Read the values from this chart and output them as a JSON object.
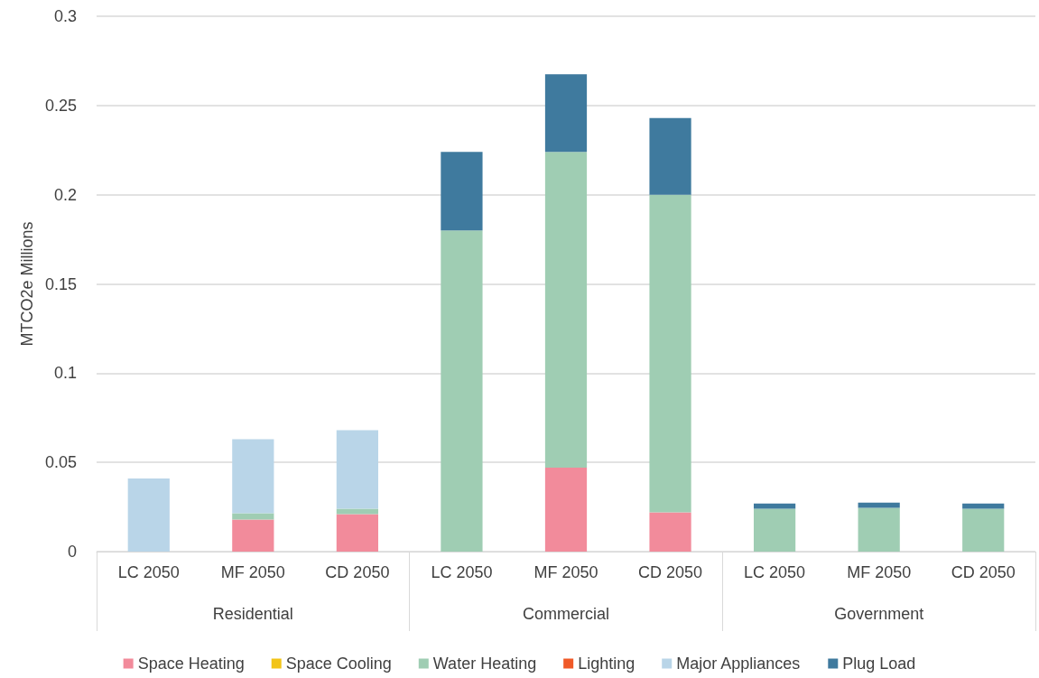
{
  "chart_data": {
    "type": "bar",
    "stacked": true,
    "ylabel": "MTCO2e Millions",
    "categories": [
      "LC 2050",
      "MF 2050",
      "CD 2050",
      "LC 2050",
      "MF 2050",
      "CD 2050",
      "LC 2050",
      "MF 2050",
      "CD 2050"
    ],
    "annotations": [
      "Residential",
      "Commercial",
      "Government"
    ],
    "series": [
      {
        "name": "Space Heating",
        "color": "#f28b9b",
        "values": [
          0,
          0.018,
          0.021,
          0,
          0.047,
          0.022,
          0,
          0,
          0
        ]
      },
      {
        "name": "Space Cooling",
        "color": "#f2c417",
        "values": [
          0,
          0,
          0,
          0,
          0,
          0,
          0,
          0,
          0
        ]
      },
      {
        "name": "Water Heating",
        "color": "#9fcdb3",
        "values": [
          0,
          0.0035,
          0.003,
          0.18,
          0.177,
          0.178,
          0.024,
          0.0245,
          0.024
        ]
      },
      {
        "name": "Lighting",
        "color": "#f05a28",
        "values": [
          0,
          0,
          0,
          0,
          0,
          0,
          0,
          0,
          0
        ]
      },
      {
        "name": "Major Appliances",
        "color": "#b9d5e8",
        "values": [
          0.041,
          0.0415,
          0.044,
          0,
          0,
          0,
          0,
          0,
          0
        ]
      },
      {
        "name": "Plug Load",
        "color": "#3f7a9e",
        "values": [
          0,
          0,
          0,
          0.044,
          0.0435,
          0.043,
          0.003,
          0.003,
          0.003
        ]
      }
    ],
    "ylim": [
      0,
      0.3
    ],
    "yticks": [
      0,
      0.05,
      0.1,
      0.15,
      0.2,
      0.25,
      0.3
    ],
    "grid": "y",
    "legend": "bottom"
  }
}
